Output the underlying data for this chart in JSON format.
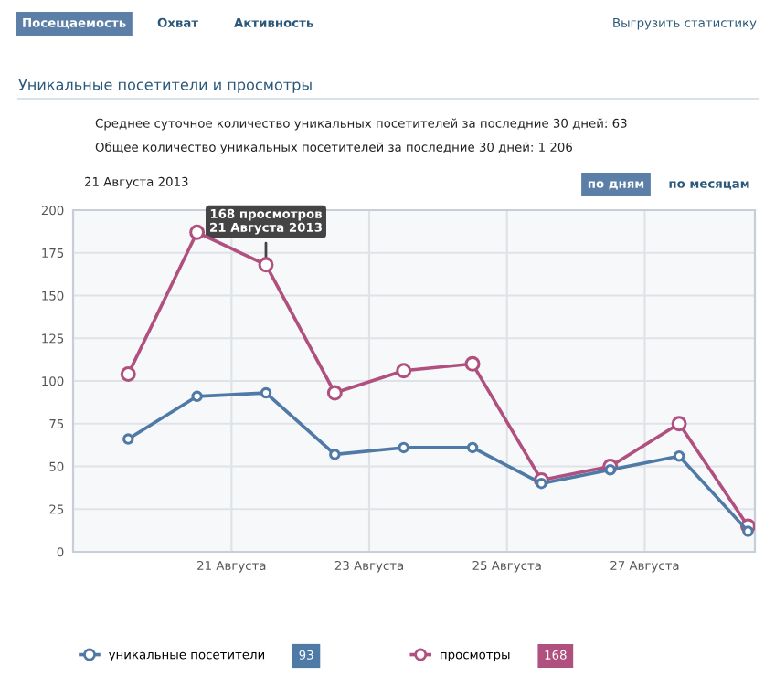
{
  "chart_data": {
    "type": "line",
    "title": "Уникальные посетители и просмотры",
    "x": [
      19.5,
      20.5,
      21.5,
      22.5,
      23.5,
      24.5,
      25.5,
      26.5,
      27.5,
      28.5
    ],
    "series": [
      {
        "name": "уникальные посетители",
        "color": "#4f7aa6",
        "values": [
          66,
          91,
          93,
          57,
          61,
          61,
          40,
          48,
          56,
          12
        ]
      },
      {
        "name": "просмотры",
        "color": "#b0507f",
        "values": [
          104,
          187,
          168,
          93,
          106,
          110,
          42,
          50,
          75,
          15
        ]
      }
    ],
    "xlim": [
      18.7,
      28.6
    ],
    "xticks": [
      {
        "value": 21,
        "label": "21 Августа"
      },
      {
        "value": 23,
        "label": "23 Августа"
      },
      {
        "value": 25,
        "label": "25 Августа"
      },
      {
        "value": 27,
        "label": "27 Августа"
      }
    ],
    "ylim": [
      0,
      200
    ],
    "yticks": [
      0,
      25,
      50,
      75,
      100,
      125,
      150,
      175,
      200
    ],
    "grid": true,
    "legend": "bottom",
    "marker": "circle",
    "line_style": "solid",
    "annotations": [
      "Посещаемость",
      "Охват",
      "Активность",
      "Выгрузить статистику",
      "Среднее суточное количество уникальных посетителей за последние 30 дней: 63",
      "Общее количество уникальных посетителей за последние 30 дней: 1 206",
      "21 Августа 2013",
      "по дням",
      "по месяцам",
      {
        "text": "168 просмотров\n21 Августа 2013",
        "x": 21.5,
        "y": 168
      },
      "93",
      "168"
    ]
  }
}
